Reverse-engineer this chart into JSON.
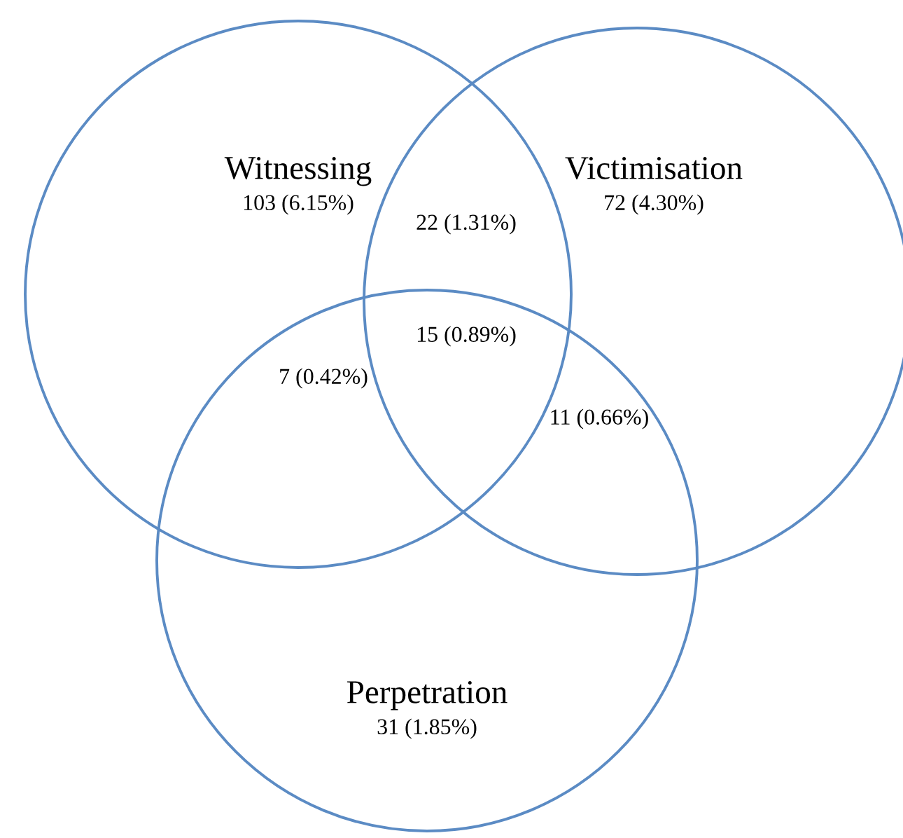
{
  "chart_data": {
    "type": "other",
    "color": "#5b8bc4",
    "categories": [
      "Witnessing",
      "Victimisation",
      "Perpetration"
    ],
    "values": [
      103,
      72,
      31
    ],
    "value_labels": [
      "103 (6.15%)",
      "72 (4.30%)",
      "31 (1.85%)"
    ],
    "annotations": [
      "22 (1.31%)",
      "7 (0.42%)",
      "11 (0.66%)",
      "15 (0.89%)"
    ]
  }
}
